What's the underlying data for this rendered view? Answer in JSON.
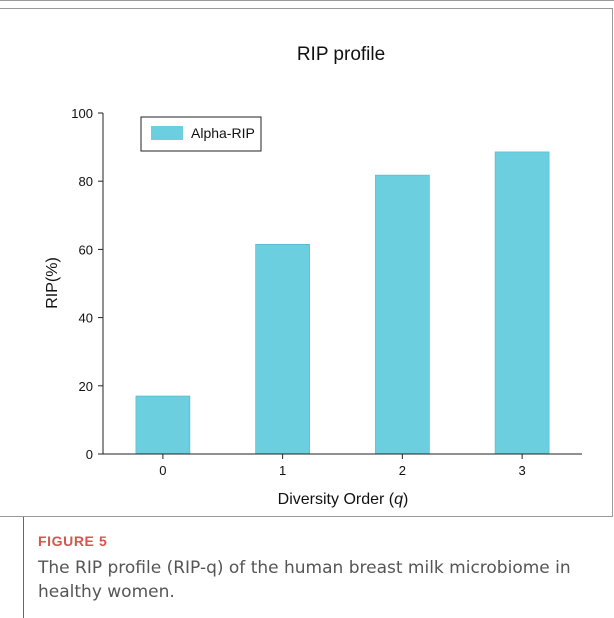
{
  "chart_data": {
    "type": "bar",
    "title": "RIP profile",
    "xlabel": "Diversity Order (",
    "xlabel_italic": "q",
    "xlabel_suffix": ")",
    "ylabel": "RIP(%)",
    "categories": [
      "0",
      "1",
      "2",
      "3"
    ],
    "series": [
      {
        "name": "Alpha-RIP",
        "values": [
          17,
          61.5,
          81.8,
          88.6
        ],
        "color": "#6ccfdf"
      }
    ],
    "ylim": [
      0,
      100
    ],
    "yticks": [
      0,
      20,
      40,
      60,
      80,
      100
    ],
    "grid": false,
    "legend": "top-left"
  },
  "caption": {
    "label": "FIGURE 5",
    "text": "The RIP profile (RIP-q) of the human breast milk microbiome in healthy women.",
    "label_color": "#d9534f"
  }
}
